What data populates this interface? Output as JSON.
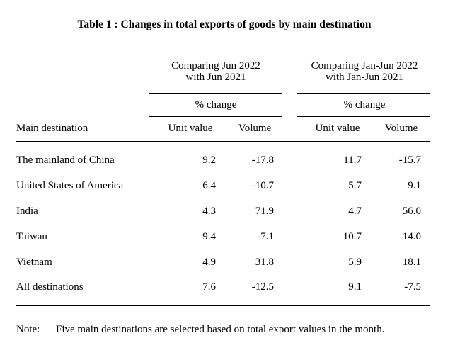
{
  "title": "Table 1 : Changes in total exports of goods by main destination",
  "groups": [
    {
      "line1": "Comparing Jun 2022",
      "line2": "with Jun 2021",
      "subheader": "% change"
    },
    {
      "line1": "Comparing Jan-Jun 2022",
      "line2": "with Jan-Jun 2021",
      "subheader": "% change"
    }
  ],
  "columns": {
    "destination": "Main destination",
    "unit_value": "Unit value",
    "volume": "Volume"
  },
  "rows": [
    {
      "destination": "The mainland of China",
      "jun_unit_value": "9.2",
      "jun_volume": "-17.8",
      "ytd_unit_value": "11.7",
      "ytd_volume": "-15.7"
    },
    {
      "destination": "United States of America",
      "jun_unit_value": "6.4",
      "jun_volume": "-10.7",
      "ytd_unit_value": "5.7",
      "ytd_volume": "9.1"
    },
    {
      "destination": "India",
      "jun_unit_value": "4.3",
      "jun_volume": "71.9",
      "ytd_unit_value": "4.7",
      "ytd_volume": "56.0"
    },
    {
      "destination": "Taiwan",
      "jun_unit_value": "9.4",
      "jun_volume": "-7.1",
      "ytd_unit_value": "10.7",
      "ytd_volume": "14.0"
    },
    {
      "destination": "Vietnam",
      "jun_unit_value": "4.9",
      "jun_volume": "31.8",
      "ytd_unit_value": "5.9",
      "ytd_volume": "18.1"
    },
    {
      "destination": "All destinations",
      "jun_unit_value": "7.6",
      "jun_volume": "-12.5",
      "ytd_unit_value": "9.1",
      "ytd_volume": "-7.5"
    }
  ],
  "note": {
    "label": "Note:",
    "text": "Five main destinations are selected based on total export values in the month."
  }
}
